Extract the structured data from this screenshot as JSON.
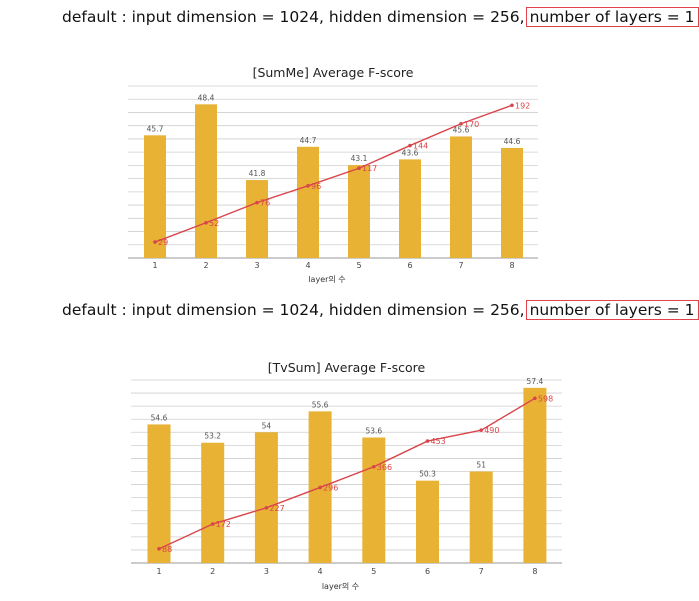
{
  "captions": [
    {
      "prefix": "default : input dimension = 1024, hidden dimension = 256,",
      "highlight": "number of layers = 1"
    },
    {
      "prefix": "default : input dimension = 1024, hidden dimension = 256,",
      "highlight": "number of layers = 1"
    }
  ],
  "colors": {
    "bar": "#e8b234",
    "line": "#d9454c",
    "grid": "#cfcfcf",
    "highlight_box": "#e0444a"
  },
  "chart_data": [
    {
      "type": "bar",
      "title": "[SumMe] Average F-score",
      "xlabel": "layer의 수",
      "ylabel": "",
      "categories": [
        "1",
        "2",
        "3",
        "4",
        "5",
        "6",
        "7",
        "8"
      ],
      "ylim": [
        35,
        50
      ],
      "grid": true,
      "series": [
        {
          "type": "bar",
          "values": [
            45.7,
            48.4,
            41.8,
            44.7,
            43.1,
            43.6,
            45.6,
            44.6
          ]
        },
        {
          "type": "line",
          "values": [
            29,
            52,
            76,
            96,
            117,
            144,
            170,
            192
          ],
          "ylim": [
            10,
            215
          ]
        }
      ]
    },
    {
      "type": "bar",
      "title": "[TvSum] Average F-score",
      "xlabel": "layer의 수",
      "ylabel": "",
      "categories": [
        "1",
        "2",
        "3",
        "4",
        "5",
        "6",
        "7",
        "8"
      ],
      "ylim": [
        44,
        58
      ],
      "grid": true,
      "series": [
        {
          "type": "bar",
          "values": [
            54.6,
            53.2,
            54,
            55.6,
            53.6,
            50.3,
            51,
            57.4
          ]
        },
        {
          "type": "line",
          "values": [
            88,
            172,
            227,
            296,
            366,
            453,
            490,
            598
          ],
          "ylim": [
            40,
            660
          ]
        }
      ]
    }
  ]
}
